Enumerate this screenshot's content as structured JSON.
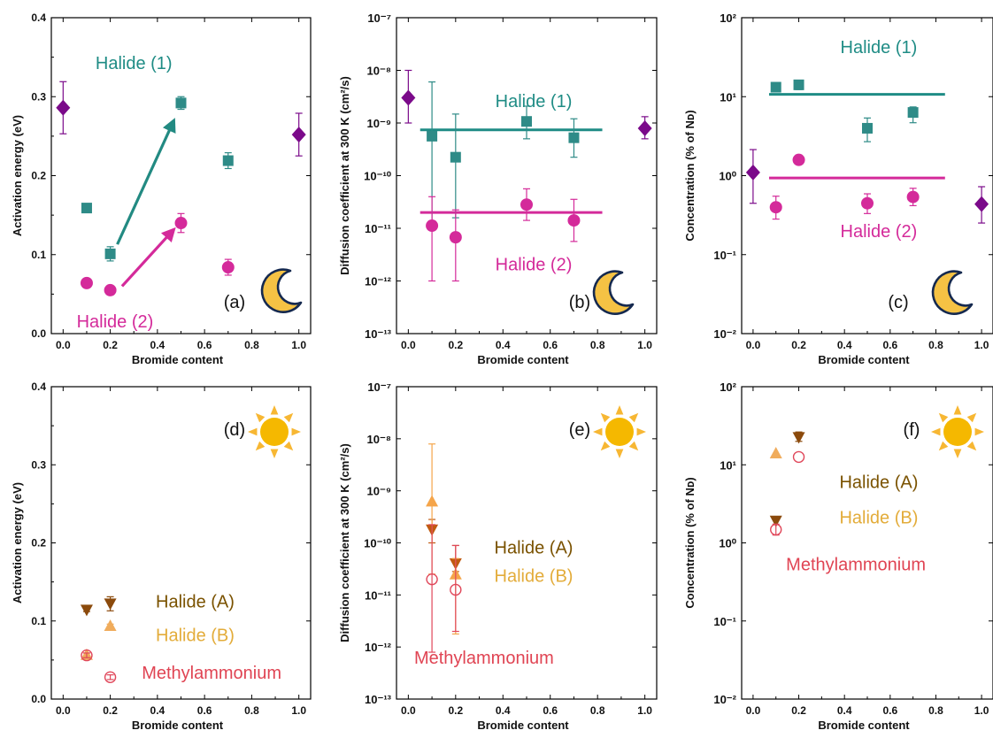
{
  "chart_data": [
    {
      "type": "scatter",
      "panel_label": "(a)",
      "xlabel": "Bromide content",
      "ylabel": "Activation energy (eV)",
      "xlim": [
        -0.05,
        1.05
      ],
      "ylim": [
        0,
        0.4
      ],
      "yscale": "linear",
      "xticks": [
        "0.0",
        "0.2",
        "0.4",
        "0.6",
        "0.8",
        "1.0"
      ],
      "yticks": [
        "0.0",
        "0.1",
        "0.2",
        "0.3",
        "0.4"
      ],
      "grid": false,
      "legend": "none",
      "icon": "moon-icon",
      "series": [
        {
          "marker": "diamond",
          "color": "#7b0a8a",
          "x": [
            0.0,
            1.0
          ],
          "y": [
            0.286,
            0.252
          ],
          "err": [
            0.033,
            0.027
          ]
        },
        {
          "marker": "square",
          "color": "#2e8b87",
          "x": [
            0.1,
            0.2,
            0.5,
            0.7
          ],
          "y": [
            0.159,
            0.101,
            0.292,
            0.219
          ],
          "err": [
            0.002,
            0.009,
            0.008,
            0.01
          ]
        },
        {
          "marker": "circle",
          "color": "#d42a9a",
          "x": [
            0.1,
            0.2,
            0.5,
            0.7
          ],
          "y": [
            0.064,
            0.055,
            0.14,
            0.084
          ],
          "err": [
            0.002,
            0.002,
            0.012,
            0.01
          ]
        }
      ],
      "arrows": [
        {
          "color": "#228a82",
          "from": [
            0.23,
            0.113
          ],
          "to": [
            0.47,
            0.27
          ]
        },
        {
          "color": "#d42a9a",
          "from": [
            0.25,
            0.06
          ],
          "to": [
            0.47,
            0.132
          ]
        }
      ],
      "annotations": [
        {
          "text": "Halide (1)",
          "color": "#1f8c85",
          "x": 0.3,
          "y": 0.335,
          "anchor": "middle"
        },
        {
          "text": "Halide (2)",
          "color": "#d42a9a",
          "x": 0.22,
          "y": -0.0,
          "anchor": "middle",
          "dy": 0.008
        }
      ]
    },
    {
      "type": "scatter",
      "panel_label": "(b)",
      "xlabel": "Bromide content",
      "ylabel": "Diffusion coefficient at 300 K (cm²/s)",
      "xlim": [
        -0.05,
        1.05
      ],
      "ylim": [
        -13,
        -7
      ],
      "yscale": "log",
      "xticks": [
        "0.0",
        "0.2",
        "0.4",
        "0.6",
        "0.8",
        "1.0"
      ],
      "yticks": [
        "10⁻¹³",
        "10⁻¹²",
        "10⁻¹¹",
        "10⁻¹⁰",
        "10⁻⁹",
        "10⁻⁸",
        "10⁻⁷"
      ],
      "grid": false,
      "legend": "none",
      "icon": "moon-icon",
      "series": [
        {
          "marker": "diamond",
          "color": "#7b0a8a",
          "x": [
            0.0,
            1.0
          ],
          "y": [
            -8.52,
            -9.1
          ],
          "err_lo": [
            -9.0,
            -9.3
          ],
          "err_hi": [
            -8.0,
            -8.88
          ]
        },
        {
          "marker": "square",
          "color": "#2e8b87",
          "x": [
            0.1,
            0.2,
            0.5,
            0.7
          ],
          "y": [
            -9.25,
            -9.65,
            -8.97,
            -9.28
          ],
          "err_lo": [
            -10.9,
            -10.8,
            -9.3,
            -9.65
          ],
          "err_hi": [
            -8.22,
            -8.83,
            -8.68,
            -8.92
          ]
        },
        {
          "marker": "circle",
          "color": "#d42a9a",
          "x": [
            0.1,
            0.2,
            0.5,
            0.7
          ],
          "y": [
            -10.95,
            -11.17,
            -10.55,
            -10.85
          ],
          "err_lo": [
            -12.0,
            -12.0,
            -10.85,
            -11.25
          ],
          "err_hi": [
            -10.4,
            -10.65,
            -10.25,
            -10.45
          ]
        }
      ],
      "hlines": [
        {
          "color": "#1f8c85",
          "y": -9.13,
          "x": [
            0.05,
            0.82
          ]
        },
        {
          "color": "#d42a9a",
          "y": -10.7,
          "x": [
            0.05,
            0.82
          ]
        }
      ],
      "annotations": [
        {
          "text": "Halide (1)",
          "color": "#1f8c85",
          "x": 0.53,
          "y": -8.7,
          "anchor": "middle"
        },
        {
          "text": "Halide (2)",
          "color": "#d42a9a",
          "x": 0.53,
          "y": -11.8,
          "anchor": "middle"
        }
      ]
    },
    {
      "type": "scatter",
      "panel_label": "(c)",
      "xlabel": "Bromide content",
      "ylabel": "Concentration (% of Nᴅ)",
      "xlim": [
        -0.05,
        1.05
      ],
      "ylim": [
        -2,
        2
      ],
      "yscale": "log",
      "xticks": [
        "0.0",
        "0.2",
        "0.4",
        "0.6",
        "0.8",
        "1.0"
      ],
      "yticks": [
        "10⁻²",
        "10⁻¹",
        "10⁰",
        "10¹",
        "10²"
      ],
      "grid": false,
      "legend": "none",
      "icon": "moon-icon",
      "series": [
        {
          "marker": "diamond",
          "color": "#7b0a8a",
          "x": [
            0.0,
            1.0
          ],
          "y": [
            0.04,
            -0.36
          ],
          "err_lo": [
            -0.35,
            -0.6
          ],
          "err_hi": [
            0.33,
            -0.14
          ]
        },
        {
          "marker": "square",
          "color": "#2e8b87",
          "x": [
            0.1,
            0.2,
            0.5,
            0.7
          ],
          "y": [
            1.12,
            1.15,
            0.6,
            0.8
          ],
          "err_lo": [
            1.06,
            1.09,
            0.43,
            0.67
          ],
          "err_hi": [
            1.17,
            1.2,
            0.73,
            0.87
          ]
        },
        {
          "marker": "circle",
          "color": "#d42a9a",
          "x": [
            0.1,
            0.2,
            0.5,
            0.7
          ],
          "y": [
            -0.4,
            0.2,
            -0.35,
            -0.27
          ],
          "err_lo": [
            -0.55,
            0.2,
            -0.48,
            -0.38
          ],
          "err_hi": [
            -0.26,
            0.2,
            -0.23,
            -0.16
          ]
        }
      ],
      "hlines": [
        {
          "color": "#1f8c85",
          "y": 1.03,
          "x": [
            0.07,
            0.84
          ]
        },
        {
          "color": "#d42a9a",
          "y": -0.03,
          "x": [
            0.07,
            0.84
          ]
        }
      ],
      "annotations": [
        {
          "text": "Halide (1)",
          "color": "#1f8c85",
          "x": 0.55,
          "y": 1.55,
          "anchor": "middle"
        },
        {
          "text": "Halide (2)",
          "color": "#d42a9a",
          "x": 0.55,
          "y": -0.78,
          "anchor": "middle"
        }
      ]
    },
    {
      "type": "scatter",
      "panel_label": "(d)",
      "xlabel": "Bromide content",
      "ylabel": "Activation energy (eV)",
      "xlim": [
        -0.05,
        1.05
      ],
      "ylim": [
        0,
        0.4
      ],
      "yscale": "linear",
      "xticks": [
        "0.0",
        "0.2",
        "0.4",
        "0.6",
        "0.8",
        "1.0"
      ],
      "yticks": [
        "0.0",
        "0.1",
        "0.2",
        "0.3",
        "0.4"
      ],
      "grid": false,
      "legend": "none",
      "icon": "sun-icon",
      "series": [
        {
          "marker": "triangle-down",
          "color": "#8b4a0c",
          "x": [
            0.1,
            0.2
          ],
          "y": [
            0.114,
            0.122
          ],
          "err": [
            0.002,
            0.009
          ]
        },
        {
          "marker": "triangle-up",
          "color": "#f0ac5c",
          "x": [
            0.1,
            0.2
          ],
          "y": [
            0.057,
            0.094
          ],
          "err": [
            0.002,
            0.002
          ]
        },
        {
          "marker": "open-circle",
          "color": "#e0475a",
          "x": [
            0.1,
            0.2
          ],
          "y": [
            0.056,
            0.028
          ],
          "err": [
            0.003,
            0.003
          ]
        }
      ],
      "annotations": [
        {
          "text": "Halide (A)",
          "color": "#7a5200",
          "x": 0.56,
          "y": 0.117,
          "anchor": "middle"
        },
        {
          "text": "Halide (B)",
          "color": "#e3ac3a",
          "x": 0.56,
          "y": 0.074,
          "anchor": "middle"
        },
        {
          "text": "Methylammonium",
          "color": "#e04453",
          "x": 0.63,
          "y": 0.026,
          "anchor": "middle"
        }
      ]
    },
    {
      "type": "scatter",
      "panel_label": "(e)",
      "xlabel": "Bromide content",
      "ylabel": "Diffusion coefficient at 300 K (cm²/s)",
      "xlim": [
        -0.05,
        1.05
      ],
      "ylim": [
        -13,
        -7
      ],
      "yscale": "log",
      "xticks": [
        "0.0",
        "0.2",
        "0.4",
        "0.6",
        "0.8",
        "1.0"
      ],
      "yticks": [
        "10⁻¹³",
        "10⁻¹²",
        "10⁻¹¹",
        "10⁻¹⁰",
        "10⁻⁹",
        "10⁻⁸",
        "10⁻⁷"
      ],
      "grid": false,
      "legend": "none",
      "icon": "sun-icon",
      "series": [
        {
          "marker": "triangle-down",
          "color": "#c05a10",
          "x": [
            0.1,
            0.2
          ],
          "y": [
            -9.75,
            -10.4
          ],
          "err_lo": [
            -10.0,
            -10.55
          ],
          "err_hi": [
            -9.55,
            -10.05
          ]
        },
        {
          "marker": "triangle-up",
          "color": "#f5a54a",
          "x": [
            0.1,
            0.2
          ],
          "y": [
            -9.2,
            -10.6
          ],
          "err_lo": [
            -10.6,
            -11.75
          ],
          "err_hi": [
            -8.1,
            -10.3
          ]
        },
        {
          "marker": "open-circle",
          "color": "#e0475a",
          "x": [
            0.1,
            0.2
          ],
          "y": [
            -10.7,
            -10.9
          ],
          "err_lo": [
            -12.1,
            -11.7
          ],
          "err_hi": [
            -9.65,
            -10.05
          ]
        }
      ],
      "annotations": [
        {
          "text": "Halide (A)",
          "color": "#7a5200",
          "x": 0.53,
          "y": -10.2,
          "anchor": "middle"
        },
        {
          "text": "Halide (B)",
          "color": "#e3ac3a",
          "x": 0.53,
          "y": -10.75,
          "anchor": "middle"
        },
        {
          "text": "Methylammonium",
          "color": "#e04453",
          "x": 0.32,
          "y": -12.32,
          "anchor": "middle"
        }
      ]
    },
    {
      "type": "scatter",
      "panel_label": "(f)",
      "xlabel": "Bromide content",
      "ylabel": "Concentration (% of Nᴅ)",
      "xlim": [
        -0.05,
        1.05
      ],
      "ylim": [
        -2,
        2
      ],
      "yscale": "log",
      "xticks": [
        "0.0",
        "0.2",
        "0.4",
        "0.6",
        "0.8",
        "1.0"
      ],
      "yticks": [
        "10⁻²",
        "10⁻¹",
        "10⁰",
        "10¹",
        "10²"
      ],
      "grid": false,
      "legend": "none",
      "icon": "sun-icon",
      "series": [
        {
          "marker": "triangle-down",
          "color": "#8b4a0c",
          "x": [
            0.1,
            0.2
          ],
          "y": [
            0.28,
            1.35
          ],
          "err_lo": [
            0.28,
            1.3
          ],
          "err_hi": [
            0.28,
            1.42
          ]
        },
        {
          "marker": "triangle-up",
          "color": "#f0ac5c",
          "x": [
            0.1
          ],
          "y": [
            1.15
          ],
          "err_lo": [
            1.15
          ],
          "err_hi": [
            1.15
          ]
        },
        {
          "marker": "open-circle",
          "color": "#e0475a",
          "x": [
            0.1,
            0.2
          ],
          "y": [
            0.17,
            1.1
          ],
          "err_lo": [
            0.1,
            1.1
          ],
          "err_hi": [
            0.24,
            1.1
          ]
        }
      ],
      "annotations": [
        {
          "text": "Halide (A)",
          "color": "#7a5200",
          "x": 0.55,
          "y": 0.7,
          "anchor": "middle"
        },
        {
          "text": "Halide (B)",
          "color": "#e3ac3a",
          "x": 0.55,
          "y": 0.25,
          "anchor": "middle"
        },
        {
          "text": "Methylammonium",
          "color": "#e04453",
          "x": 0.45,
          "y": -0.35,
          "anchor": "middle"
        }
      ]
    }
  ]
}
